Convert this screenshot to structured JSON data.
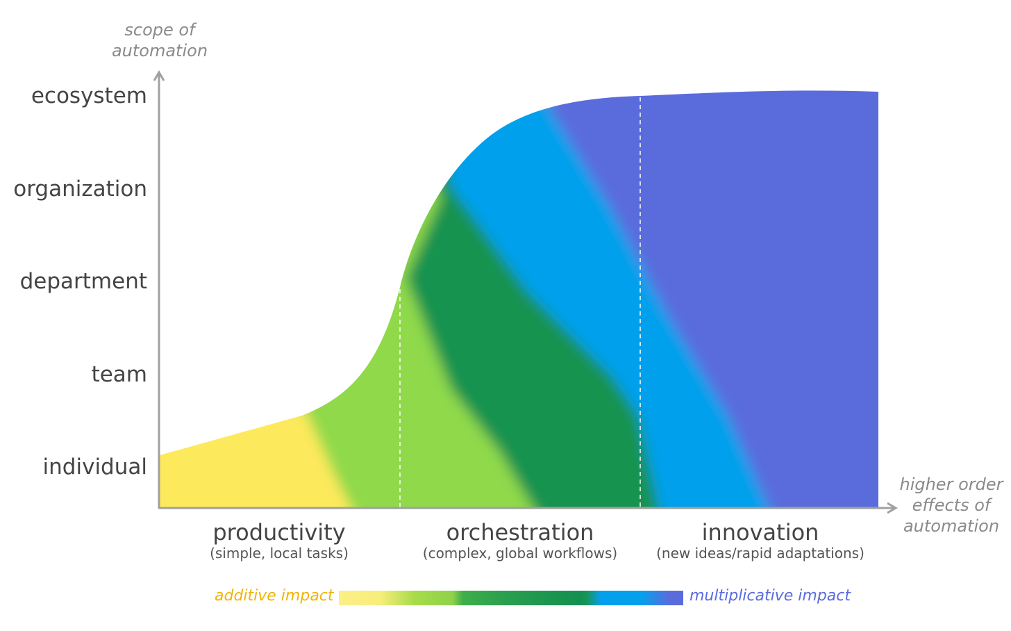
{
  "y_axis": {
    "title": "scope of automation",
    "title_lines": [
      "scope of",
      "automation"
    ],
    "levels": [
      "ecosystem",
      "organization",
      "department",
      "team",
      "individual"
    ]
  },
  "x_axis": {
    "title_lines": [
      "higher order",
      "effects of",
      "automation"
    ],
    "phases": [
      {
        "label": "productivity",
        "sub": "(simple, local tasks)"
      },
      {
        "label": "orchestration",
        "sub": "(complex, global workflows)"
      },
      {
        "label": "innovation",
        "sub": "(new ideas/rapid adaptations)"
      }
    ]
  },
  "legend": {
    "left": "additive impact",
    "right": "multiplicative impact",
    "left_color": "#f0b400",
    "right_color": "#5a6cdc"
  },
  "colors": {
    "yellow": "#fde95c",
    "light_green": "#8fd94b",
    "dark_green": "#12934f",
    "blue": "#05a0ec",
    "purple": "#5a6cdc",
    "axis": "#a0a0a0"
  }
}
